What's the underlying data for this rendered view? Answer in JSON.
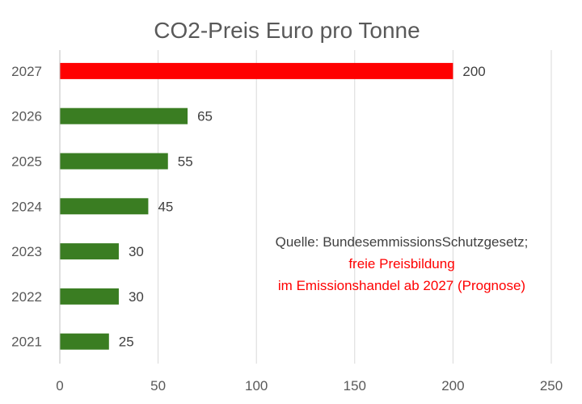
{
  "chart_data": {
    "type": "bar",
    "orientation": "horizontal",
    "title": "CO2-Preis Euro  pro Tonne",
    "xlabel": "",
    "ylabel": "",
    "categories": [
      "2027",
      "2026",
      "2025",
      "2024",
      "2023",
      "2022",
      "2021"
    ],
    "values": [
      200,
      65,
      55,
      45,
      30,
      30,
      25
    ],
    "data_labels": [
      "200",
      "65",
      "55",
      "45",
      "30",
      "30",
      "25"
    ],
    "bar_colors": [
      "#ff0000",
      "#3a7d22",
      "#3a7d22",
      "#3a7d22",
      "#3a7d22",
      "#3a7d22",
      "#3a7d22"
    ],
    "xlim": [
      0,
      250
    ],
    "xticks": [
      0,
      50,
      100,
      150,
      200,
      250
    ],
    "xtick_labels": [
      "0",
      "50",
      "100",
      "150",
      "200",
      "250"
    ],
    "grid": "vertical",
    "legend": "none",
    "annotation": {
      "source": "Quelle: BundesemmissionsSchutzgesetz;",
      "line2": "freie Preisbildung",
      "line3": "im Emissionshandel ab 2027 (Prognose)",
      "source_color": "#404040",
      "highlight_color": "#ff0000"
    }
  }
}
